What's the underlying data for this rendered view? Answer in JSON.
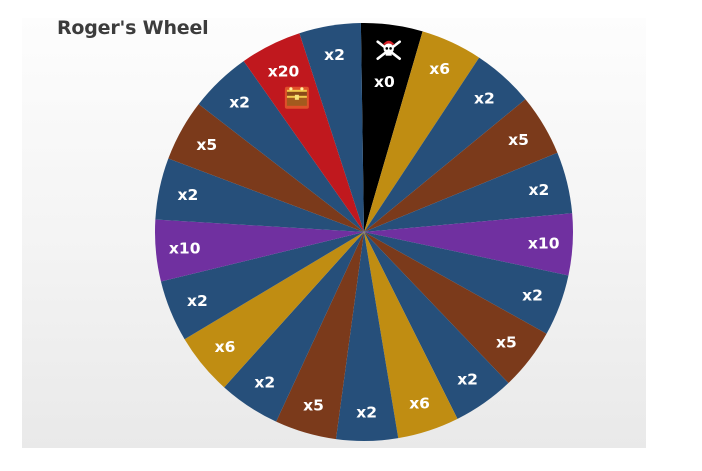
{
  "title": "Roger's Wheel",
  "colors": {
    "blue": "#264f7a",
    "brown": "#7b3a1b",
    "gold": "#c08d12",
    "purple": "#7030a0",
    "red": "#c0181e",
    "black": "#000000"
  },
  "segments": [
    {
      "label": "x0",
      "color": "black",
      "icon": "skull-crossbones-icon"
    },
    {
      "label": "x6",
      "color": "gold"
    },
    {
      "label": "x2",
      "color": "blue"
    },
    {
      "label": "x5",
      "color": "brown"
    },
    {
      "label": "x2",
      "color": "blue"
    },
    {
      "label": "x10",
      "color": "purple"
    },
    {
      "label": "x2",
      "color": "blue"
    },
    {
      "label": "x5",
      "color": "brown"
    },
    {
      "label": "x2",
      "color": "blue"
    },
    {
      "label": "x6",
      "color": "gold"
    },
    {
      "label": "x2",
      "color": "blue"
    },
    {
      "label": "x5",
      "color": "brown"
    },
    {
      "label": "x2",
      "color": "blue"
    },
    {
      "label": "x6",
      "color": "gold"
    },
    {
      "label": "x2",
      "color": "blue"
    },
    {
      "label": "x10",
      "color": "purple"
    },
    {
      "label": "x2",
      "color": "blue"
    },
    {
      "label": "x5",
      "color": "brown"
    },
    {
      "label": "x2",
      "color": "blue"
    },
    {
      "label": "x20",
      "color": "red",
      "icon": "treasure-chest-icon"
    },
    {
      "label": "x2",
      "color": "blue"
    }
  ]
}
